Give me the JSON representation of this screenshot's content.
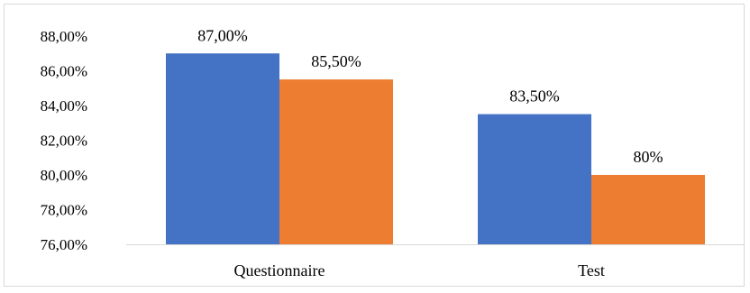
{
  "chart_data": {
    "type": "bar",
    "categories": [
      "Questionnaire",
      "Test"
    ],
    "series": [
      {
        "values": [
          87.0,
          83.5
        ],
        "labels": [
          "87,00%",
          "83,50%"
        ],
        "color": "#4472C4"
      },
      {
        "values": [
          85.5,
          80.0
        ],
        "labels": [
          "85,50%",
          "80%"
        ],
        "color": "#ED7D31"
      }
    ],
    "ylim": [
      76,
      88
    ],
    "yticks": [
      76,
      78,
      80,
      82,
      84,
      86,
      88
    ],
    "ytick_labels": [
      "76,00%",
      "78,00%",
      "80,00%",
      "82,00%",
      "84,00%",
      "86,00%",
      "88,00%"
    ],
    "grid": false,
    "legend": "none"
  }
}
